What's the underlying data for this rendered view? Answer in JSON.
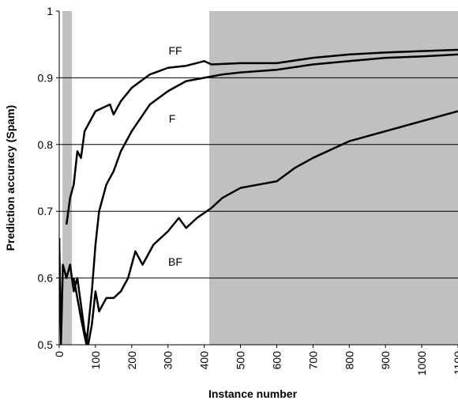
{
  "chart_data": {
    "type": "line",
    "y_label": "Prediction accuracy (Spam)",
    "x_label": "Instance number",
    "xlim": [
      0,
      1100
    ],
    "ylim": [
      0.5,
      1
    ],
    "xticks": [
      0,
      100,
      200,
      300,
      400,
      500,
      600,
      700,
      800,
      900,
      1000,
      1100
    ],
    "yticks": [
      0.5,
      0.6,
      0.7,
      0.8,
      0.9,
      1
    ],
    "grid": true,
    "shaded_regions": [
      [
        9,
        35
      ],
      [
        414,
        1100
      ]
    ],
    "shade_color": "#c0c0c0",
    "series": [
      {
        "name": "FF",
        "color": "#000000",
        "x": [
          20,
          30,
          40,
          50,
          60,
          70,
          80,
          100,
          120,
          140,
          150,
          170,
          200,
          250,
          300,
          350,
          400,
          420,
          500,
          600,
          700,
          800,
          900,
          1000,
          1100
        ],
        "values": [
          0.68,
          0.72,
          0.74,
          0.79,
          0.78,
          0.82,
          0.83,
          0.85,
          0.855,
          0.86,
          0.845,
          0.865,
          0.885,
          0.905,
          0.915,
          0.918,
          0.925,
          0.92,
          0.922,
          0.922,
          0.93,
          0.935,
          0.938,
          0.94,
          0.942
        ]
      },
      {
        "name": "F",
        "color": "#000000",
        "x": [
          40,
          60,
          75,
          90,
          100,
          110,
          130,
          150,
          170,
          200,
          250,
          300,
          350,
          400,
          450,
          500,
          600,
          700,
          800,
          900,
          1000,
          1100
        ],
        "values": [
          0.6,
          0.54,
          0.5,
          0.58,
          0.65,
          0.7,
          0.74,
          0.76,
          0.79,
          0.82,
          0.86,
          0.88,
          0.895,
          0.9,
          0.905,
          0.908,
          0.912,
          0.92,
          0.925,
          0.93,
          0.932,
          0.935
        ]
      },
      {
        "name": "BF",
        "color": "#000000",
        "x": [
          0,
          5,
          10,
          20,
          30,
          40,
          50,
          60,
          70,
          80,
          90,
          100,
          110,
          130,
          150,
          170,
          190,
          210,
          230,
          260,
          300,
          330,
          350,
          380,
          420,
          450,
          500,
          550,
          600,
          650,
          700,
          800,
          900,
          1000,
          1100
        ],
        "values": [
          0.66,
          0.5,
          0.62,
          0.6,
          0.62,
          0.58,
          0.6,
          0.56,
          0.52,
          0.5,
          0.53,
          0.58,
          0.55,
          0.57,
          0.57,
          0.58,
          0.6,
          0.64,
          0.62,
          0.65,
          0.67,
          0.69,
          0.675,
          0.69,
          0.705,
          0.72,
          0.735,
          0.74,
          0.745,
          0.765,
          0.78,
          0.805,
          0.82,
          0.835,
          0.85
        ]
      }
    ]
  }
}
